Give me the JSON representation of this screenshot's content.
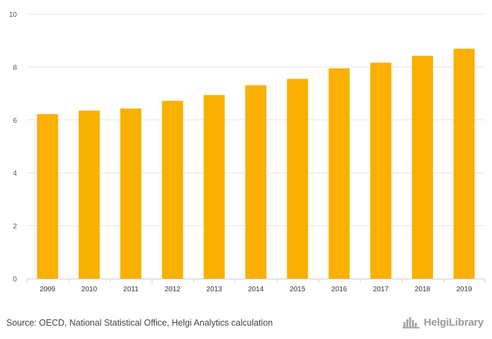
{
  "chart_data": {
    "type": "bar",
    "categories": [
      "2009",
      "2010",
      "2011",
      "2012",
      "2013",
      "2014",
      "2015",
      "2016",
      "2017",
      "2018",
      "2019"
    ],
    "values": [
      6.22,
      6.35,
      6.43,
      6.72,
      6.94,
      7.31,
      7.55,
      7.95,
      8.16,
      8.42,
      8.69
    ],
    "yticks": [
      "0",
      "2",
      "4",
      "6",
      "8",
      "10"
    ],
    "ylim": [
      0,
      10
    ],
    "grid": true,
    "bar_color": "#f9b000"
  },
  "footer": {
    "source": "Source: OECD, National Statistical Office, Helgi Analytics calculation",
    "brand": "HelgiLibrary",
    "brand_icon": "city-skyline-icon"
  }
}
